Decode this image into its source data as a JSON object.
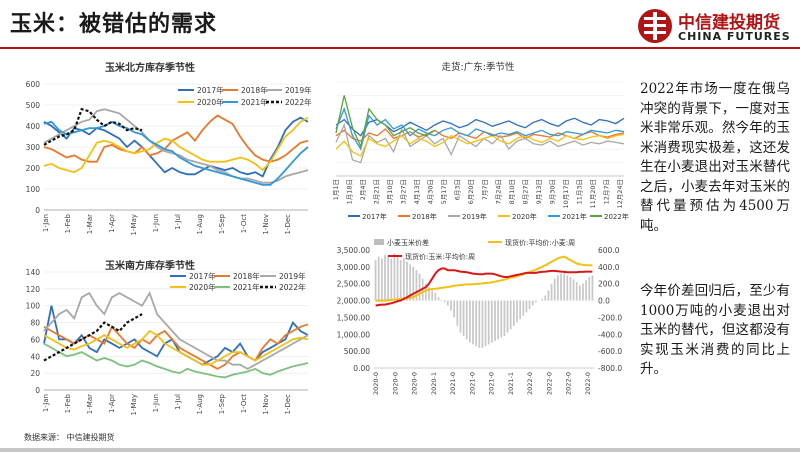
{
  "page": {
    "title": "玉米：被错估的需求",
    "source": "数据来源： 中信建投期货"
  },
  "logo": {
    "name_cn": "中信建投期货",
    "name_en": "CHINA FUTURES",
    "brand_color": "#b01515"
  },
  "text": {
    "para1": "2022年市场一度在俄乌冲突的背景下，一度对玉米非常乐观。然今年的玉米消费现实极差，这还发生在小麦退出对玉米替代之后，小麦去年对玉米的替代量预估为4500万吨。",
    "para2": "今年价差回归后，至少有1000万吨的小麦退出对玉米的替代，但这都没有实现玉米消费的同比上升。"
  },
  "chart_data": [
    {
      "id": "north",
      "type": "line",
      "title": "玉米北方库存季节性",
      "xticks": [
        "1-Jan",
        "1-Feb",
        "1-Mar",
        "1-Apr",
        "1-May",
        "1-Jun",
        "1-Jul",
        "1-Aug",
        "1-Sep",
        "1-Oct",
        "1-Nov",
        "1-Dec"
      ],
      "ylim": [
        0,
        600
      ],
      "yticks": [
        0,
        100,
        200,
        300,
        400,
        500,
        600
      ],
      "series": [
        {
          "name": "2017年",
          "color": "#2e6fbd",
          "dash": "",
          "values": [
            420,
            400,
            370,
            340,
            390,
            380,
            360,
            390,
            380,
            360,
            340,
            300,
            330,
            300,
            260,
            220,
            180,
            200,
            180,
            170,
            170,
            190,
            210,
            200,
            190,
            200,
            180,
            170,
            180,
            160,
            240,
            300,
            380,
            420,
            440,
            420
          ]
        },
        {
          "name": "2018年",
          "color": "#e8782c",
          "dash": "",
          "values": [
            300,
            290,
            270,
            250,
            260,
            240,
            230,
            230,
            300,
            310,
            290,
            280,
            270,
            300,
            260,
            270,
            290,
            330,
            350,
            370,
            330,
            380,
            420,
            450,
            430,
            410,
            350,
            300,
            260,
            240,
            230,
            240,
            260,
            290,
            320,
            330
          ]
        },
        {
          "name": "2019年",
          "color": "#a8a8a8",
          "dash": "",
          "values": [
            320,
            340,
            360,
            380,
            400,
            420,
            430,
            470,
            480,
            470,
            460,
            430,
            400,
            370,
            330,
            300,
            280,
            270,
            260,
            240,
            230,
            220,
            210,
            190,
            180,
            160,
            150,
            150,
            140,
            130,
            130,
            140,
            160,
            170,
            180,
            190
          ]
        },
        {
          "name": "2020年",
          "color": "#f2c114",
          "dash": "",
          "values": [
            210,
            220,
            200,
            190,
            180,
            200,
            260,
            320,
            330,
            320,
            300,
            280,
            270,
            280,
            290,
            320,
            340,
            330,
            300,
            280,
            260,
            240,
            230,
            230,
            230,
            240,
            250,
            240,
            220,
            190,
            230,
            290,
            350,
            380,
            420,
            440
          ]
        },
        {
          "name": "2021年",
          "color": "#3399d6",
          "dash": "",
          "values": [
            410,
            420,
            380,
            360,
            370,
            380,
            390,
            390,
            400,
            420,
            400,
            390,
            370,
            360,
            330,
            310,
            290,
            280,
            250,
            230,
            210,
            200,
            190,
            180,
            170,
            160,
            150,
            140,
            130,
            120,
            120,
            150,
            190,
            230,
            270,
            300
          ]
        },
        {
          "name": "2022年",
          "color": "#111111",
          "dash": "3,2",
          "values": [
            310,
            330,
            350,
            360,
            380,
            480,
            470,
            430,
            400,
            420,
            410,
            380,
            390,
            380
          ]
        }
      ]
    },
    {
      "id": "south",
      "type": "line",
      "title": "玉米南方库存季节性",
      "xticks": [
        "1-Jan",
        "1-Feb",
        "1-Mar",
        "1-Apr",
        "1-May",
        "1-Jun",
        "1-Jul",
        "1-Aug",
        "1-Sep",
        "1-Oct",
        "1-Nov",
        "1-Dec"
      ],
      "ylim": [
        0,
        140
      ],
      "yticks": [
        0,
        20,
        40,
        60,
        80,
        100,
        120,
        140
      ],
      "series": [
        {
          "name": "2017年",
          "color": "#2e6fbd",
          "dash": "",
          "values": [
            55,
            100,
            60,
            60,
            55,
            65,
            50,
            45,
            60,
            55,
            50,
            55,
            60,
            50,
            45,
            40,
            55,
            60,
            45,
            40,
            35,
            30,
            35,
            40,
            50,
            45,
            55,
            40,
            35,
            45,
            50,
            55,
            60,
            80,
            70,
            65
          ]
        },
        {
          "name": "2018年",
          "color": "#e8782c",
          "dash": "",
          "values": [
            75,
            70,
            65,
            60,
            55,
            60,
            65,
            60,
            55,
            75,
            65,
            55,
            50,
            60,
            55,
            65,
            70,
            60,
            50,
            45,
            40,
            35,
            30,
            25,
            30,
            40,
            45,
            40,
            35,
            50,
            60,
            55,
            65,
            70,
            75,
            78
          ]
        },
        {
          "name": "2019年",
          "color": "#a8a8a8",
          "dash": "",
          "values": [
            70,
            80,
            90,
            95,
            85,
            110,
            115,
            100,
            90,
            110,
            115,
            110,
            105,
            100,
            115,
            90,
            80,
            70,
            60,
            55,
            50,
            45,
            40,
            35,
            35,
            30,
            30,
            25,
            30,
            35,
            40,
            45,
            50,
            55,
            60,
            65
          ]
        },
        {
          "name": "2020年",
          "color": "#f2c114",
          "dash": "",
          "values": [
            65,
            60,
            55,
            50,
            48,
            52,
            55,
            60,
            65,
            60,
            55,
            50,
            55,
            60,
            70,
            65,
            55,
            50,
            45,
            40,
            35,
            30,
            30,
            35,
            40,
            45,
            45,
            40,
            35,
            40,
            45,
            50,
            55,
            60,
            62,
            60
          ]
        },
        {
          "name": "2021年",
          "color": "#7fbf7f",
          "dash": "",
          "values": [
            55,
            50,
            45,
            40,
            42,
            45,
            40,
            35,
            38,
            35,
            30,
            28,
            30,
            35,
            32,
            28,
            25,
            22,
            20,
            25,
            22,
            20,
            18,
            16,
            15,
            18,
            20,
            22,
            25,
            20,
            18,
            22,
            25,
            28,
            30,
            32
          ]
        },
        {
          "name": "2022年",
          "color": "#111111",
          "dash": "3,2",
          "values": [
            35,
            40,
            45,
            50,
            55,
            60,
            65,
            70,
            80,
            75,
            70,
            80,
            85,
            90
          ]
        }
      ]
    },
    {
      "id": "spot",
      "type": "line",
      "title": "走货:广东:季节性",
      "xticks": [
        "1月1日",
        "1月18日",
        "2月4日",
        "2月21日",
        "3月10日",
        "3月27日",
        "4月13日",
        "4月30日",
        "5月17日",
        "6月3日",
        "6月20日",
        "7月7日",
        "7月24日",
        "8月10日",
        "8月27日",
        "9月13日",
        "9月30日",
        "10月17日",
        "11月3日",
        "11月20日",
        "12月7日",
        "12月24日"
      ],
      "ylim": [
        0,
        700
      ],
      "yticks": [],
      "series": [
        {
          "name": "2017年",
          "color": "#2e6fbd",
          "values": [
            380,
            420,
            350,
            300,
            400,
            420,
            380,
            330,
            360,
            400,
            370,
            340,
            380,
            410,
            390,
            360,
            380,
            420,
            400,
            370,
            390,
            410,
            380,
            360,
            400,
            420,
            390,
            370,
            410,
            430,
            400,
            380,
            420,
            410,
            390,
            430
          ]
        },
        {
          "name": "2018年",
          "color": "#e8782c",
          "values": [
            300,
            340,
            280,
            260,
            320,
            300,
            350,
            280,
            300,
            330,
            290,
            310,
            340,
            300,
            280,
            320,
            300,
            280,
            330,
            310,
            290,
            300,
            320,
            280,
            310,
            300,
            290,
            320,
            300,
            280,
            310,
            330,
            300,
            290,
            310,
            320
          ]
        },
        {
          "name": "2019年",
          "color": "#a8a8a8",
          "values": [
            250,
            380,
            120,
            100,
            300,
            250,
            280,
            180,
            350,
            220,
            260,
            300,
            240,
            280,
            160,
            300,
            260,
            220,
            280,
            240,
            300,
            200,
            260,
            280,
            240,
            230,
            260,
            220,
            240,
            260,
            230,
            250,
            240,
            260,
            250,
            240
          ]
        },
        {
          "name": "2020年",
          "color": "#f2c114",
          "values": [
            200,
            260,
            180,
            150,
            280,
            240,
            220,
            260,
            300,
            240,
            280,
            260,
            220,
            250,
            300,
            270,
            240,
            260,
            280,
            300,
            260,
            240,
            280,
            300,
            270,
            250,
            280,
            260,
            300,
            280,
            270,
            290,
            300,
            280,
            300,
            310
          ]
        },
        {
          "name": "2021年",
          "color": "#3399d6",
          "values": [
            350,
            500,
            300,
            200,
            450,
            380,
            420,
            350,
            380,
            300,
            350,
            320,
            300,
            340,
            360,
            320,
            300,
            350,
            330,
            300,
            320,
            310,
            330,
            300,
            320,
            340,
            310,
            300,
            330,
            320,
            310,
            340,
            330,
            320,
            340,
            330
          ]
        },
        {
          "name": "2022年",
          "color": "#5aa33d",
          "values": [
            320,
            600,
            360,
            220,
            500,
            420,
            380,
            300,
            330,
            360,
            320,
            300,
            340
          ]
        }
      ]
    },
    {
      "id": "wheat",
      "type": "bar+line",
      "legend": [
        "小麦玉米价差",
        "现货价:平均价:小麦:周",
        "现货价:玉米:平均价:周"
      ],
      "xticks": [
        "2020-0",
        "2020-0",
        "2020-0",
        "2020-1",
        "2021-0",
        "2021-0",
        "2021-0",
        "2021-1",
        "2022-0",
        "2022-0",
        "2022-0",
        "2022-0"
      ],
      "left_yticks": [
        "0.00",
        "500.00",
        "1,000.00",
        "1,500.00",
        "2,000.00",
        "2,500.00",
        "3,000.00",
        "3,500.00"
      ],
      "right_yticks": [
        "-800.0",
        "-600.0",
        "-400.0",
        "-200.0",
        "0.0",
        "200.0",
        "400.0",
        "600.0"
      ],
      "left_ylim": [
        0,
        3500
      ],
      "right_ylim": [
        -800,
        600
      ],
      "spread": [
        480,
        520,
        500,
        540,
        520,
        500,
        560,
        520,
        480,
        500,
        460,
        430,
        400,
        360,
        320,
        260,
        200,
        160,
        120,
        90,
        40,
        10,
        -20,
        -60,
        -120,
        -200,
        -300,
        -380,
        -420,
        -460,
        -500,
        -520,
        -540,
        -560,
        -560,
        -540,
        -520,
        -500,
        -480,
        -460,
        -440,
        -420,
        -380,
        -340,
        -300,
        -260,
        -220,
        -180,
        -140,
        -100,
        -60,
        -20,
        0,
        20,
        60,
        120,
        200,
        260,
        300,
        320,
        330,
        300,
        280,
        250,
        220,
        180,
        200,
        240,
        280,
        300
      ],
      "wheat_price": [
        2000,
        2000,
        2000,
        2000,
        2010,
        2020,
        2030,
        2040,
        2050,
        2060,
        2070,
        2080,
        2100,
        2150,
        2200,
        2250,
        2300,
        2330,
        2340,
        2350,
        2360,
        2380,
        2390,
        2400,
        2420,
        2440,
        2450,
        2460,
        2470,
        2480,
        2480,
        2490,
        2490,
        2500,
        2510,
        2520,
        2530,
        2540,
        2560,
        2580,
        2600,
        2620,
        2650,
        2680,
        2700,
        2720,
        2750,
        2780,
        2820,
        2850,
        2880,
        2920,
        2960,
        3000,
        3050,
        3100,
        3150,
        3200,
        3250,
        3280,
        3300,
        3250,
        3200,
        3150,
        3100,
        3080,
        3060,
        3050,
        3050,
        3050
      ],
      "corn_price": [
        1850,
        1870,
        1880,
        1880,
        1900,
        1920,
        1950,
        1980,
        2000,
        2050,
        2100,
        2150,
        2200,
        2250,
        2300,
        2350,
        2400,
        2500,
        2650,
        2800,
        2900,
        2950,
        2950,
        2900,
        2900,
        2900,
        2880,
        2860,
        2850,
        2840,
        2820,
        2800,
        2790,
        2780,
        2780,
        2800,
        2800,
        2800,
        2780,
        2750,
        2720,
        2700,
        2700,
        2720,
        2740,
        2760,
        2780,
        2800,
        2820,
        2820,
        2820,
        2820,
        2840,
        2850,
        2860,
        2870,
        2880,
        2880,
        2870,
        2860,
        2850,
        2840,
        2840,
        2840,
        2840,
        2850,
        2850,
        2860,
        2860,
        2860
      ]
    }
  ]
}
